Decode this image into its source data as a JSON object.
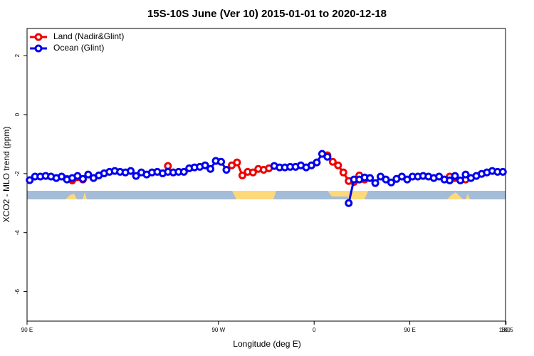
{
  "chart_data": {
    "type": "line",
    "title": "15S-10S June (Ver 10)   2015-01-01 to 2020-12-18",
    "x_label": "Longitude (deg E)",
    "y_label": "XCO2 - MLO trend (ppm)",
    "xlim": [
      -270,
      180
    ],
    "ylim": [
      -7,
      2.92
    ],
    "xticks": [
      {
        "value": -270,
        "label": "90 E"
      },
      180.5,
      {
        "value": -90,
        "label": "90 W"
      },
      0,
      {
        "value": 90,
        "label": "90 E"
      },
      180
    ],
    "yticks": [
      2,
      0,
      -2,
      -4,
      -6
    ],
    "legend": "top-left",
    "series": [
      {
        "name": "Land (Nadir&Glint)",
        "color": "#ee0000",
        "x": [
          -232.5,
          -227.5,
          -217.5,
          -180,
          -137.5,
          -110,
          -77.5,
          -72.5,
          -67.5,
          -62.5,
          -57.5,
          -52.5,
          -47.5,
          -42.5,
          0,
          12.5,
          17.5,
          22.5,
          27.5,
          32.5,
          37.5,
          42.5,
          47.5,
          100,
          127.5,
          132.5,
          142.5
        ],
        "values": [
          -2.18,
          -2.23,
          -2.2,
          null,
          -1.74,
          null,
          -1.72,
          -1.62,
          -2.06,
          -1.94,
          -1.96,
          -1.84,
          -1.87,
          -1.82,
          null,
          -1.38,
          -1.6,
          -1.72,
          -1.96,
          -2.25,
          -2.28,
          -2.06,
          -2.2,
          null,
          -2.1,
          -2.15,
          -2.2
        ]
      },
      {
        "name": "Ocean (Glint)",
        "color": "#0000ee",
        "x": [
          -267.5,
          -262.5,
          -257.5,
          -252.5,
          -247.5,
          -242.5,
          -237.5,
          -232.5,
          -227.5,
          -222.5,
          -217.5,
          -212.5,
          -207.5,
          -202.5,
          -197.5,
          -192.5,
          -187.5,
          -182.5,
          -177.5,
          -172.5,
          -167.5,
          -162.5,
          -157.5,
          -152.5,
          -147.5,
          -142.5,
          -137.5,
          -132.5,
          -127.5,
          -122.5,
          -117.5,
          -112.5,
          -107.5,
          -102.5,
          -97.5,
          -92.5,
          -87.5,
          -82.5,
          -60,
          -37.5,
          -32.5,
          -27.5,
          -22.5,
          -17.5,
          -12.5,
          -7.5,
          -2.5,
          2.5,
          7.5,
          12.5,
          25,
          32.5,
          37.5,
          42.5,
          47.5,
          52.5,
          57.5,
          62.5,
          67.5,
          72.5,
          77.5,
          82.5,
          87.5,
          92.5,
          97.5,
          102.5,
          107.5,
          112.5,
          117.5,
          122.5,
          127.5,
          132.5,
          137.5,
          142.5,
          147.5,
          152.5,
          157.5,
          162.5,
          167.5,
          172.5,
          177.5
        ],
        "values": [
          -2.22,
          -2.1,
          -2.1,
          -2.08,
          -2.1,
          -2.15,
          -2.1,
          -2.2,
          -2.15,
          -2.08,
          -2.18,
          -2.03,
          -2.15,
          -2.06,
          -1.99,
          -1.94,
          -1.91,
          -1.94,
          -1.96,
          -1.91,
          -2.08,
          -1.96,
          -2.03,
          -1.96,
          -1.94,
          -1.99,
          -1.94,
          -1.96,
          -1.94,
          -1.94,
          -1.82,
          -1.79,
          -1.77,
          -1.72,
          -1.84,
          -1.57,
          -1.6,
          -1.87,
          null,
          -1.74,
          -1.79,
          -1.79,
          -1.77,
          -1.77,
          -1.72,
          -1.79,
          -1.72,
          -1.62,
          -1.33,
          -1.43,
          null,
          -3.0,
          -2.2,
          -2.2,
          -2.13,
          -2.15,
          -2.32,
          -2.1,
          -2.2,
          -2.3,
          -2.18,
          -2.1,
          -2.2,
          -2.1,
          -2.1,
          -2.08,
          -2.1,
          -2.15,
          -2.1,
          -2.2,
          -2.23,
          -2.08,
          -2.23,
          -2.03,
          -2.15,
          -2.08,
          -2.01,
          -1.96,
          -1.91,
          -1.94,
          -1.94
        ]
      }
    ]
  }
}
